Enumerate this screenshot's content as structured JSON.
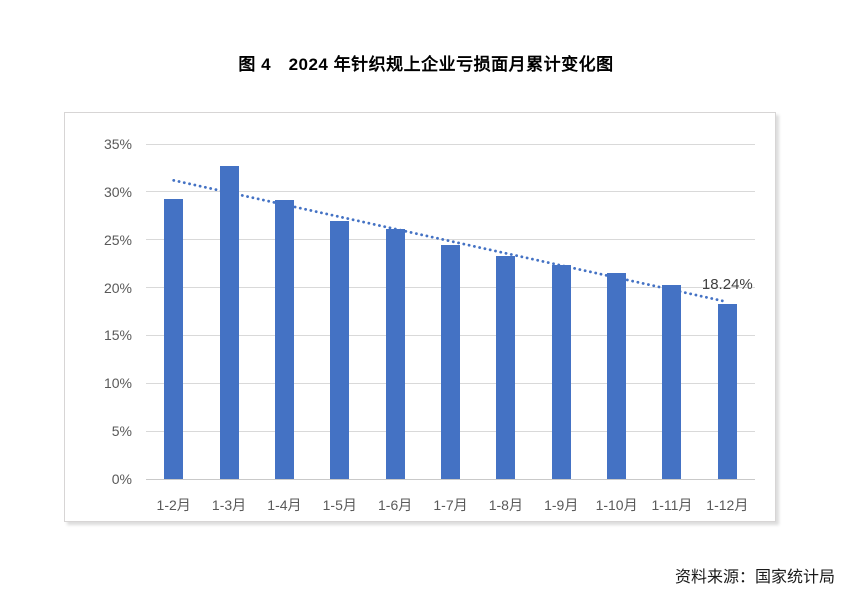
{
  "page": {
    "title": "图 4　2024 年针织规上企业亏损面月累计变化图",
    "source": "资料来源：国家统计局"
  },
  "chart_data": {
    "type": "bar",
    "title": "图 4　2024 年针织规上企业亏损面月累计变化图",
    "categories": [
      "1-2月",
      "1-3月",
      "1-4月",
      "1-5月",
      "1-6月",
      "1-7月",
      "1-8月",
      "1-9月",
      "1-10月",
      "1-11月",
      "1-12月"
    ],
    "values": [
      29.3,
      32.7,
      29.2,
      27.0,
      26.1,
      24.4,
      23.3,
      22.4,
      21.5,
      20.3,
      18.24
    ],
    "unit": "%",
    "xlabel": "",
    "ylabel": "",
    "ylim": [
      0,
      35
    ],
    "ytick_step": 5,
    "ytick_labels": [
      "0%",
      "5%",
      "10%",
      "15%",
      "20%",
      "25%",
      "30%",
      "35%"
    ],
    "grid": "horizontal",
    "legend": "none",
    "annotation": {
      "text": "18.24%",
      "index": 10,
      "value": 18.24
    },
    "trendline": {
      "style": "dotted",
      "start_value": 31.2,
      "end_value": 18.5
    },
    "colors": {
      "bar": "#4472c4",
      "trendline": "#4472c4",
      "gridline": "#d9d9d9",
      "baseline": "#c9c9c9",
      "axis_label": "#595959",
      "annotation_text": "#404040"
    },
    "source": "资料来源：国家统计局"
  }
}
